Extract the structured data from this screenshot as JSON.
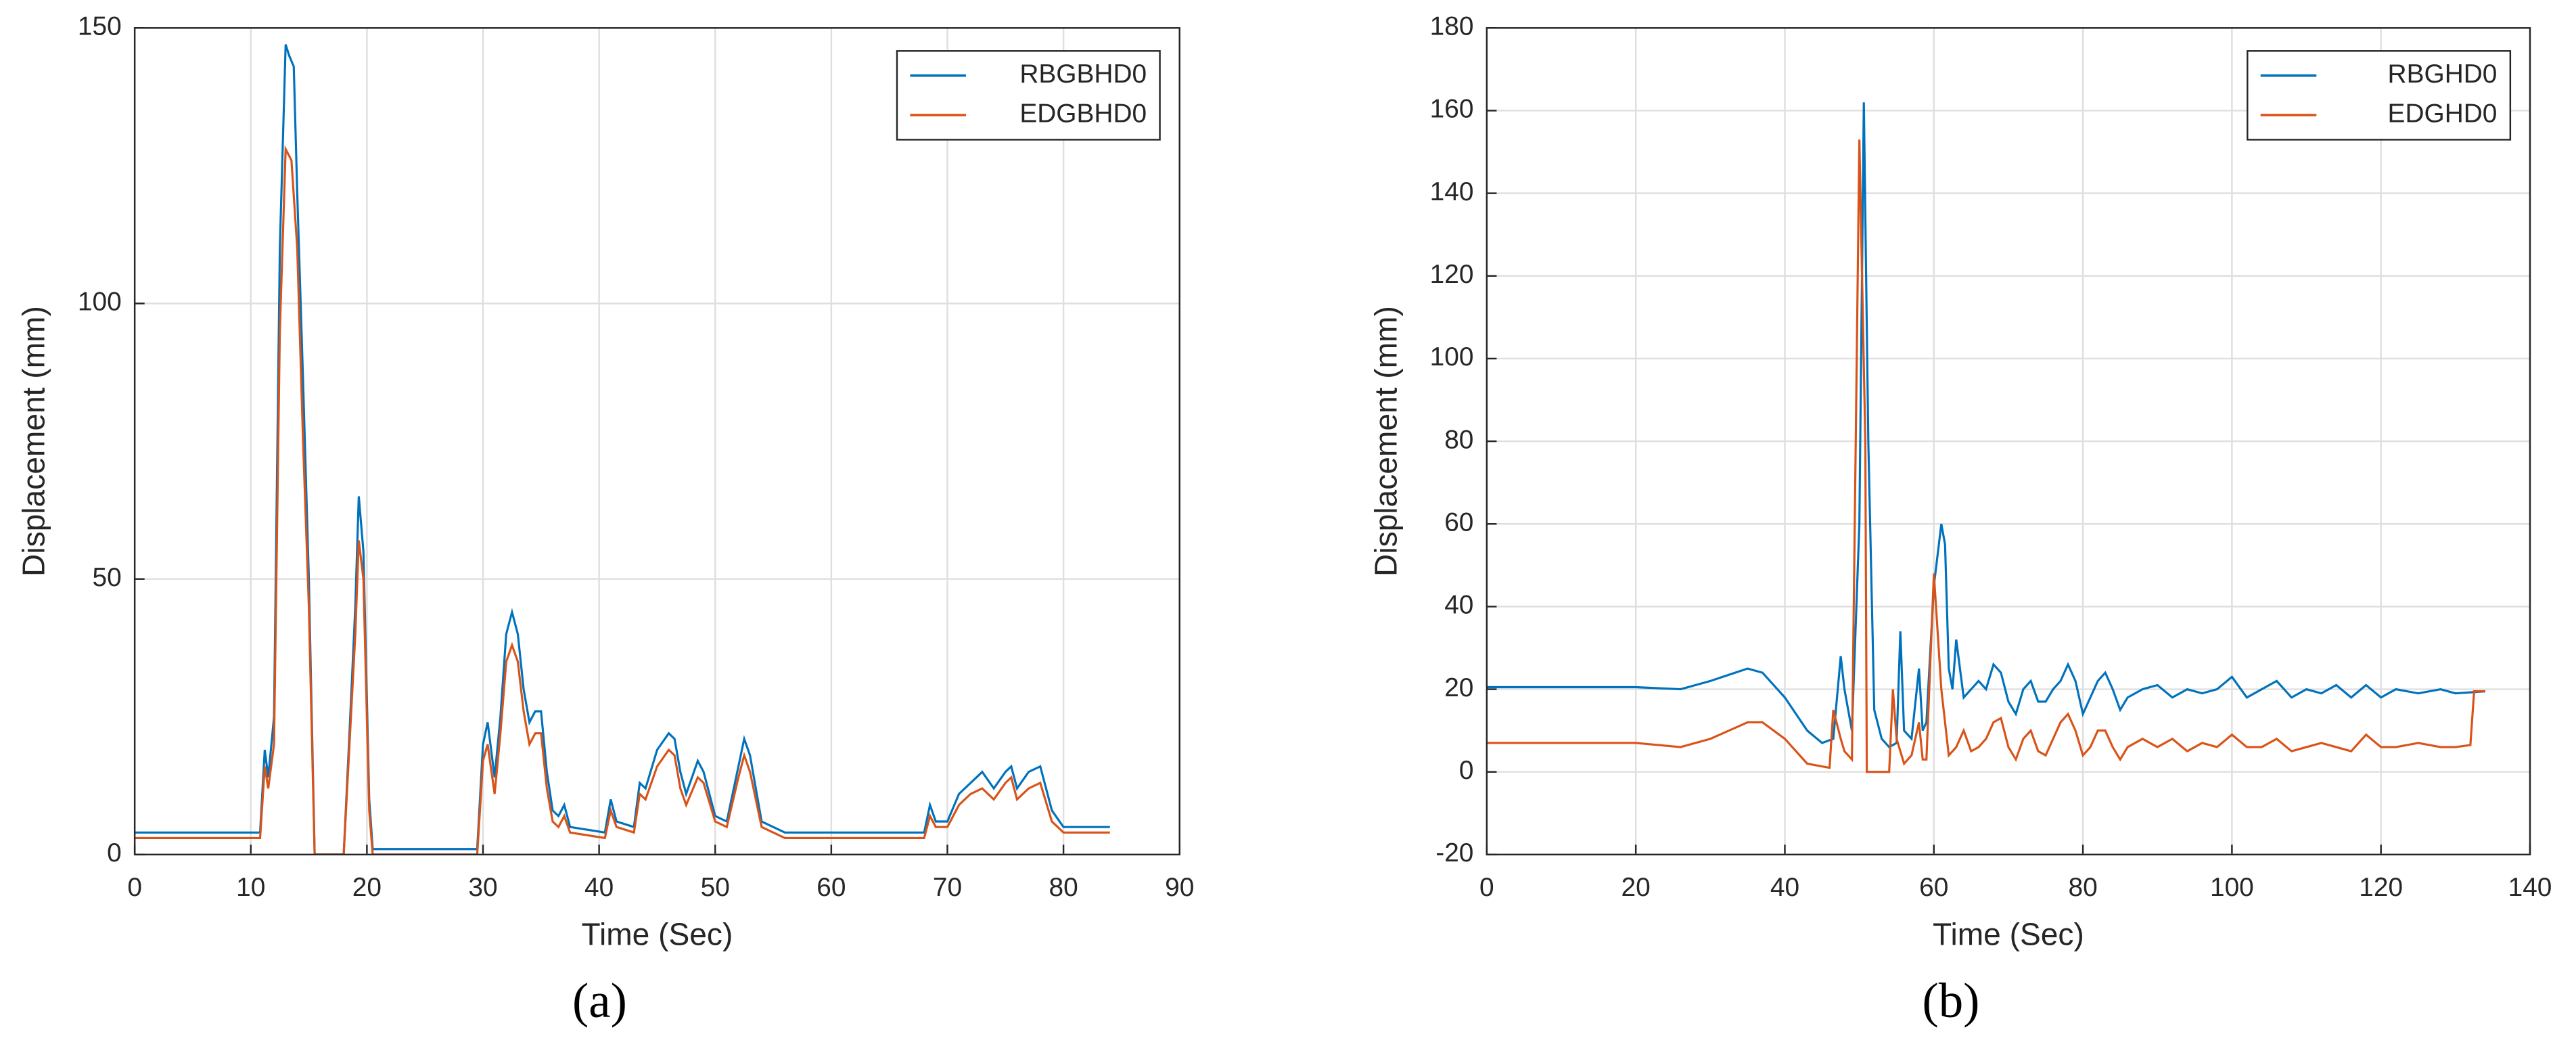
{
  "chart_data": [
    {
      "type": "line",
      "caption": "(a)",
      "xlabel": "Time (Sec)",
      "ylabel": "Displacement (mm)",
      "xlim": [
        0,
        90
      ],
      "xticks": [
        0,
        10,
        20,
        30,
        40,
        50,
        60,
        70,
        80,
        90
      ],
      "ylim": [
        0,
        150
      ],
      "yticks": [
        0,
        50,
        100,
        150
      ],
      "grid": true,
      "legend": "top-right",
      "series": [
        {
          "name": "RBGBHD0",
          "color": "#0072bd",
          "x": [
            0,
            10.8,
            11.2,
            11.5,
            12,
            12.5,
            13,
            13.3,
            13.7,
            14,
            14.5,
            15,
            15.5,
            18,
            18.5,
            19,
            19.3,
            19.7,
            20.2,
            20.5,
            29.5,
            30,
            30.4,
            31,
            31.5,
            32,
            32.5,
            33,
            33.5,
            34,
            34.5,
            35,
            35.5,
            36,
            36.5,
            37,
            37.5,
            40.5,
            41,
            41.5,
            43,
            43.5,
            44,
            45,
            46,
            46.5,
            47,
            47.5,
            48.5,
            49,
            50,
            51,
            52,
            52.5,
            53,
            54,
            56,
            68,
            68.5,
            69,
            70,
            71,
            72,
            73,
            74,
            75,
            75.5,
            76,
            77,
            78,
            79,
            80,
            84
          ],
          "values": [
            4,
            4,
            19,
            14,
            25,
            110,
            147,
            145,
            143,
            120,
            86,
            50,
            0,
            0,
            22,
            45,
            65,
            55,
            10,
            1,
            1,
            20,
            24,
            14,
            25,
            40,
            44,
            40,
            30,
            24,
            26,
            26,
            15,
            8,
            7,
            9,
            5,
            4,
            10,
            6,
            5,
            13,
            12,
            19,
            22,
            21,
            15,
            11,
            17,
            15,
            7,
            6,
            16,
            21,
            18,
            6,
            4,
            4,
            9,
            6,
            6,
            11,
            13,
            15,
            12,
            15,
            16,
            12,
            15,
            16,
            8,
            5,
            5
          ]
        },
        {
          "name": "EDGBHD0",
          "color": "#d95319",
          "x": [
            0,
            10.8,
            11.2,
            11.5,
            12,
            12.5,
            13,
            13.5,
            14,
            14.5,
            15,
            15.5,
            18,
            18.5,
            19,
            19.3,
            19.7,
            20.2,
            20.5,
            29.5,
            30,
            30.4,
            31,
            31.5,
            32,
            32.5,
            33,
            33.5,
            34,
            34.5,
            35,
            35.5,
            36,
            36.5,
            37,
            37.5,
            40.5,
            41,
            41.5,
            43,
            43.5,
            44,
            45,
            46,
            46.5,
            47,
            47.5,
            48.5,
            49,
            50,
            51,
            52,
            52.5,
            53,
            54,
            56,
            68,
            68.5,
            69,
            70,
            71,
            72,
            73,
            74,
            75,
            75.5,
            76,
            77,
            78,
            79,
            80,
            84
          ],
          "values": [
            3,
            3,
            16,
            12,
            20,
            95,
            128,
            126,
            110,
            75,
            45,
            0,
            0,
            20,
            40,
            57,
            50,
            8,
            0,
            0,
            17,
            20,
            11,
            22,
            35,
            38,
            35,
            26,
            20,
            22,
            22,
            12,
            6,
            5,
            7,
            4,
            3,
            8,
            5,
            4,
            11,
            10,
            16,
            19,
            18,
            12,
            9,
            14,
            13,
            6,
            5,
            14,
            18,
            15,
            5,
            3,
            3,
            7,
            5,
            5,
            9,
            11,
            12,
            10,
            13,
            14,
            10,
            12,
            13,
            6,
            4,
            4
          ]
        }
      ]
    },
    {
      "type": "line",
      "caption": "(b)",
      "xlabel": "Time (Sec)",
      "ylabel": "Displacement (mm)",
      "xlim": [
        0,
        140
      ],
      "xticks": [
        0,
        20,
        40,
        60,
        80,
        100,
        120,
        140
      ],
      "ylim": [
        -20,
        180
      ],
      "yticks": [
        -20,
        0,
        20,
        40,
        60,
        80,
        100,
        120,
        140,
        160,
        180
      ],
      "grid": true,
      "legend": "top-right",
      "series": [
        {
          "name": "RBGHD0",
          "color": "#0072bd",
          "x": [
            0,
            20,
            26,
            30,
            35,
            37,
            40,
            43,
            45,
            46.5,
            47.5,
            48,
            49,
            50,
            50.6,
            51.2,
            52,
            53,
            54,
            55,
            55.5,
            56,
            57,
            58,
            58.5,
            59,
            60,
            61,
            61.5,
            62,
            62.5,
            63,
            64,
            65,
            66,
            67,
            68,
            69,
            70,
            71,
            72,
            73,
            74,
            75,
            76,
            77,
            78,
            79,
            80,
            81,
            82,
            83,
            84,
            85,
            86,
            88,
            90,
            92,
            94,
            96,
            98,
            100,
            102,
            104,
            106,
            108,
            110,
            112,
            114,
            116,
            118,
            120,
            122,
            125,
            128,
            130,
            134
          ],
          "values": [
            20.5,
            20.5,
            20,
            22,
            25,
            24,
            18,
            10,
            7,
            8,
            28,
            20,
            10,
            60,
            162,
            80,
            15,
            8,
            6,
            7,
            34,
            10,
            8,
            25,
            10,
            12,
            45,
            60,
            55,
            25,
            20,
            32,
            18,
            20,
            22,
            20,
            26,
            24,
            17,
            14,
            20,
            22,
            17,
            17,
            20,
            22,
            26,
            22,
            14,
            18,
            22,
            24,
            20,
            15,
            18,
            20,
            21,
            18,
            20,
            19,
            20,
            23,
            18,
            20,
            22,
            18,
            20,
            19,
            21,
            18,
            21,
            18,
            20,
            19,
            20,
            19,
            19.5
          ]
        },
        {
          "name": "EDGHD0",
          "color": "#d95319",
          "x": [
            0,
            20,
            26,
            30,
            35,
            37,
            40,
            43,
            46,
            46.5,
            47.5,
            48,
            49,
            50,
            50.8,
            51,
            54,
            54.5,
            55,
            56,
            57,
            58,
            58.5,
            59,
            60,
            61,
            62,
            63,
            64,
            65,
            66,
            67,
            68,
            69,
            70,
            71,
            72,
            73,
            74,
            75,
            76,
            77,
            78,
            79,
            80,
            81,
            82,
            83,
            84,
            85,
            86,
            88,
            90,
            92,
            94,
            96,
            98,
            100,
            102,
            104,
            106,
            108,
            110,
            112,
            114,
            116,
            118,
            120,
            122,
            125,
            128,
            130,
            132,
            132.5,
            134
          ],
          "values": [
            7,
            7,
            6,
            8,
            12,
            12,
            8,
            2,
            1,
            15,
            8,
            5,
            3,
            153,
            80,
            0,
            0,
            20,
            8,
            2,
            4,
            12,
            3,
            3,
            48,
            20,
            4,
            6,
            10,
            5,
            6,
            8,
            12,
            13,
            6,
            3,
            8,
            10,
            5,
            4,
            8,
            12,
            14,
            10,
            4,
            6,
            10,
            10,
            6,
            3,
            6,
            8,
            6,
            8,
            5,
            7,
            6,
            9,
            6,
            6,
            8,
            5,
            6,
            7,
            6,
            5,
            9,
            6,
            6,
            7,
            6,
            6,
            6.5,
            19.5,
            19.5
          ]
        }
      ]
    }
  ]
}
